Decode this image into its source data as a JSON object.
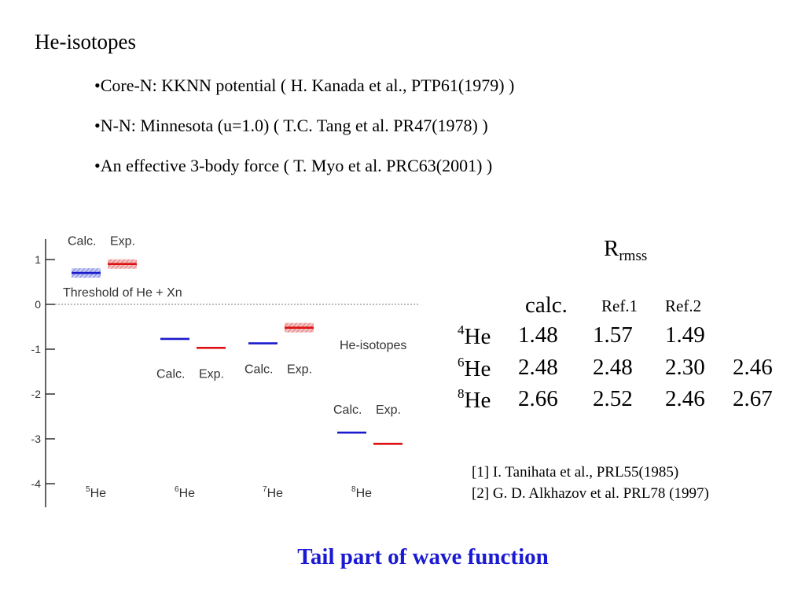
{
  "slide": {
    "title": "He-isotopes",
    "bullets": [
      "•Core-N: KKNN potential   ( H. Kanada et al., PTP61(1979) )",
      "•N-N: Minnesota (u=1.0)   ( T.C. Tang et al. PR47(1978) )",
      "•An effective 3-body force   ( T. Myo et al. PRC63(2001) )"
    ],
    "caption": "Tail part of wave function"
  },
  "rms_table": {
    "heading_main": "R",
    "heading_sub": "rmss",
    "columns": [
      "calc.",
      "Ref.1",
      "Ref.2",
      ""
    ],
    "rows": [
      {
        "mass": "4",
        "element": "He",
        "values": [
          "1.48",
          "1.57",
          "1.49",
          ""
        ]
      },
      {
        "mass": "6",
        "element": "He",
        "values": [
          "2.48",
          "2.48",
          "2.30",
          "2.46"
        ]
      },
      {
        "mass": "8",
        "element": "He",
        "values": [
          "2.66",
          "2.52",
          "2.46",
          "2.67"
        ]
      }
    ],
    "references": [
      "[1] I. Tanihata et al., PRL55(1985)",
      "[2]  G. D. Alkhazov et al. PRL78 (1997)"
    ]
  },
  "chart_data": {
    "type": "level-scheme",
    "title": "He-isotopes",
    "xlabel": "",
    "ylabel": "",
    "ylim": [
      -4.5,
      1.5
    ],
    "yticks": [
      1,
      0,
      -1,
      -2,
      -3,
      -4
    ],
    "threshold": {
      "value": 0,
      "label": "Threshold of He + Xn"
    },
    "pair_labels": [
      "Calc.",
      "Exp."
    ],
    "colors": {
      "calc": "#1a1acc",
      "exp": "#dd1111"
    },
    "isotopes": [
      {
        "mass": "5",
        "element": "He",
        "calc": 0.7,
        "exp": 0.9,
        "calc_width": true,
        "exp_width": true,
        "labels_above": true
      },
      {
        "mass": "6",
        "element": "He",
        "calc": -0.77,
        "exp": -0.97,
        "calc_width": false,
        "exp_width": false,
        "labels_above": false
      },
      {
        "mass": "7",
        "element": "He",
        "calc": -0.87,
        "exp": -0.52,
        "calc_width": false,
        "exp_width": true,
        "labels_above": false
      },
      {
        "mass": "8",
        "element": "He",
        "calc": -2.86,
        "exp": -3.11,
        "calc_width": false,
        "exp_width": false,
        "labels_above": true
      }
    ]
  }
}
